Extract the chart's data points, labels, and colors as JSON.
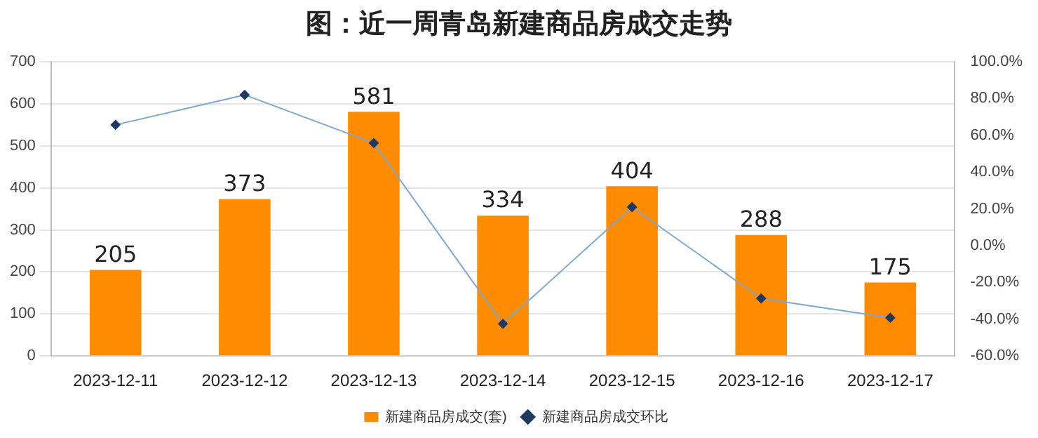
{
  "chart_data": {
    "type": "bar",
    "title": "图：近一周青岛新建商品房成交走势",
    "categories": [
      "2023-12-11",
      "2023-12-12",
      "2023-12-13",
      "2023-12-14",
      "2023-12-15",
      "2023-12-16",
      "2023-12-17"
    ],
    "series": [
      {
        "name": "新建商品房成交(套)",
        "color": "#ff8c00",
        "values": [
          205,
          373,
          581,
          334,
          404,
          288,
          175
        ],
        "value_labels": [
          "205",
          "373",
          "581",
          "334",
          "404",
          "288",
          "175"
        ]
      },
      {
        "name": "新建商品房成交环比",
        "type": "line",
        "axis": "y2",
        "color": "#7ba7d4",
        "values": [
          65.7,
          82.0,
          55.8,
          -42.5,
          21.0,
          -28.7,
          -39.2
        ]
      }
    ],
    "ylim": [
      0,
      700
    ],
    "yticks": [
      0,
      100,
      200,
      300,
      400,
      500,
      600,
      700
    ],
    "y2lim": [
      -60,
      100
    ],
    "y2ticks": [
      {
        "value": -60,
        "label": "-60.0%"
      },
      {
        "value": -40,
        "label": "-40.0%"
      },
      {
        "value": -20,
        "label": "-20.0%"
      },
      {
        "value": 0,
        "label": "0.0%"
      },
      {
        "value": 20,
        "label": "20.0%"
      },
      {
        "value": 40,
        "label": "40.0%"
      },
      {
        "value": 60,
        "label": "60.0%"
      },
      {
        "value": 80,
        "label": "80.0%"
      },
      {
        "value": 100,
        "label": "100.0%"
      }
    ],
    "grid": "y",
    "legend": "bottom",
    "marker": "diamond",
    "line_style": "solid"
  }
}
